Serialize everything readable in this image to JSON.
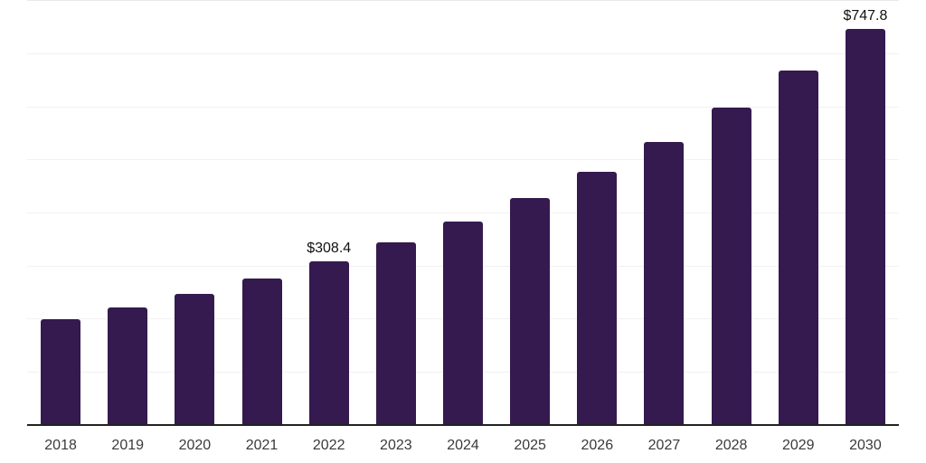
{
  "chart_data": {
    "type": "bar",
    "title": "",
    "xlabel": "",
    "ylabel": "",
    "categories": [
      "2018",
      "2019",
      "2020",
      "2021",
      "2022",
      "2023",
      "2024",
      "2025",
      "2026",
      "2027",
      "2028",
      "2029",
      "2030"
    ],
    "values": [
      199,
      222,
      248,
      276,
      308.4,
      345,
      384,
      428,
      478,
      534,
      598,
      668,
      747.8
    ],
    "data_labels": [
      {
        "category": "2022",
        "text": "$308.4"
      },
      {
        "category": "2030",
        "text": "$747.8"
      }
    ],
    "ylim": [
      0,
      800
    ],
    "grid_step": 100,
    "grid": true,
    "y_tick_labels_visible": false,
    "legend_position": "none",
    "colors": {
      "bar": "#341a4f",
      "gridline": "#f1f1f1",
      "top_gridline": "#e9e9e9",
      "axis_line": "#222222",
      "data_label_text": "#111111",
      "tick_label_text": "#3a3a3a",
      "background": "#ffffff"
    }
  }
}
